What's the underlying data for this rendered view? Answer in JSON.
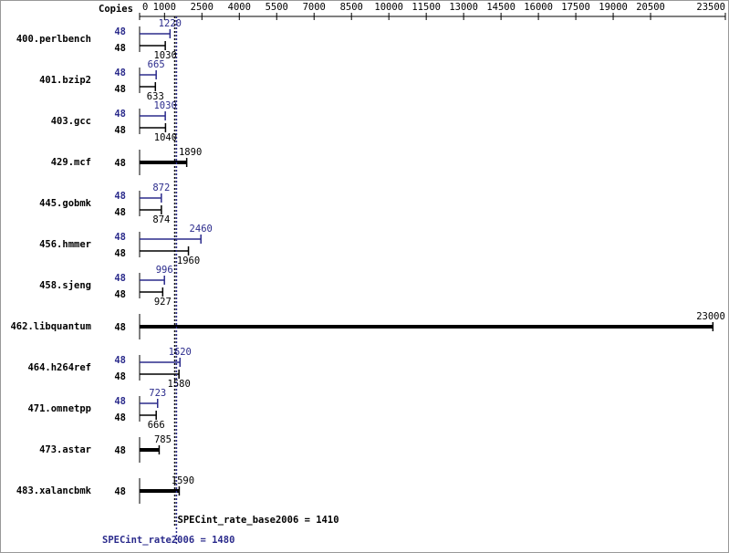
{
  "chart_data": {
    "type": "bar",
    "orientation": "horizontal",
    "copies_header": "Copies",
    "categories": [
      "400.perlbench",
      "401.bzip2",
      "403.gcc",
      "429.mcf",
      "445.gobmk",
      "456.hmmer",
      "458.sjeng",
      "462.libquantum",
      "464.h264ref",
      "471.omnetpp",
      "473.astar",
      "483.xalancbmk"
    ],
    "series": [
      {
        "color": "#2b2b8c",
        "copies": [
          48,
          48,
          48,
          null,
          48,
          48,
          48,
          null,
          48,
          48,
          null,
          null
        ],
        "values": [
          1220,
          665,
          1030,
          null,
          872,
          2460,
          996,
          null,
          1620,
          723,
          null,
          null
        ]
      },
      {
        "color": "#000000",
        "copies": [
          48,
          48,
          48,
          48,
          48,
          48,
          48,
          48,
          48,
          48,
          48,
          48
        ],
        "values": [
          1030,
          633,
          1040,
          1890,
          874,
          1960,
          927,
          23000,
          1580,
          666,
          785,
          1590
        ]
      }
    ],
    "xlim": [
      0,
      23500
    ],
    "xticks": [
      0,
      1000,
      2500,
      4000,
      5500,
      7000,
      8500,
      10000,
      11500,
      13000,
      14500,
      16000,
      17500,
      19000,
      20500,
      23500
    ],
    "reference_lines": [
      {
        "label": "SPECint_rate_base2006 = 1410",
        "value": 1410,
        "color": "#000000"
      },
      {
        "label": "SPECint_rate2006 = 1480",
        "value": 1480,
        "color": "#2b2b8c"
      }
    ]
  }
}
